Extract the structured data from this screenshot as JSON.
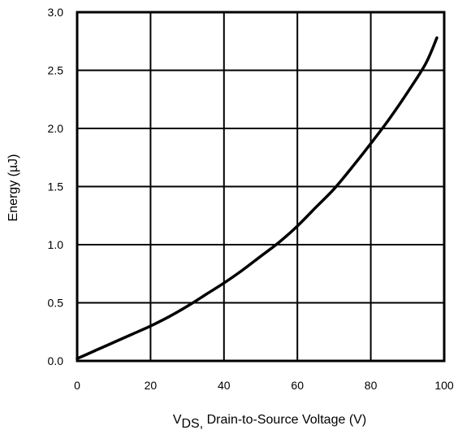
{
  "chart_data": {
    "type": "line",
    "title": "",
    "xlabel_prefix": "V",
    "xlabel_sub": "DS,",
    "xlabel_rest": " Drain-to-Source Voltage (V)",
    "ylabel": "Energy (µJ)",
    "xlim": [
      0,
      100
    ],
    "ylim": [
      0,
      3.0
    ],
    "xticks": [
      "0",
      "20",
      "40",
      "60",
      "80",
      "100"
    ],
    "yticks": [
      "0.0",
      "0.5",
      "1.0",
      "1.5",
      "2.0",
      "2.5",
      "3.0"
    ],
    "grid": true,
    "legend": "none",
    "line_color": "#000000",
    "series": [
      {
        "x": [
          0,
          5,
          10,
          15,
          20,
          25,
          30,
          35,
          40,
          45,
          50,
          55,
          60,
          65,
          70,
          75,
          80,
          85,
          90,
          95,
          98
        ],
        "values": [
          0.02,
          0.09,
          0.16,
          0.23,
          0.3,
          0.38,
          0.47,
          0.57,
          0.67,
          0.78,
          0.9,
          1.02,
          1.16,
          1.32,
          1.48,
          1.67,
          1.87,
          2.08,
          2.31,
          2.56,
          2.78
        ]
      }
    ]
  }
}
